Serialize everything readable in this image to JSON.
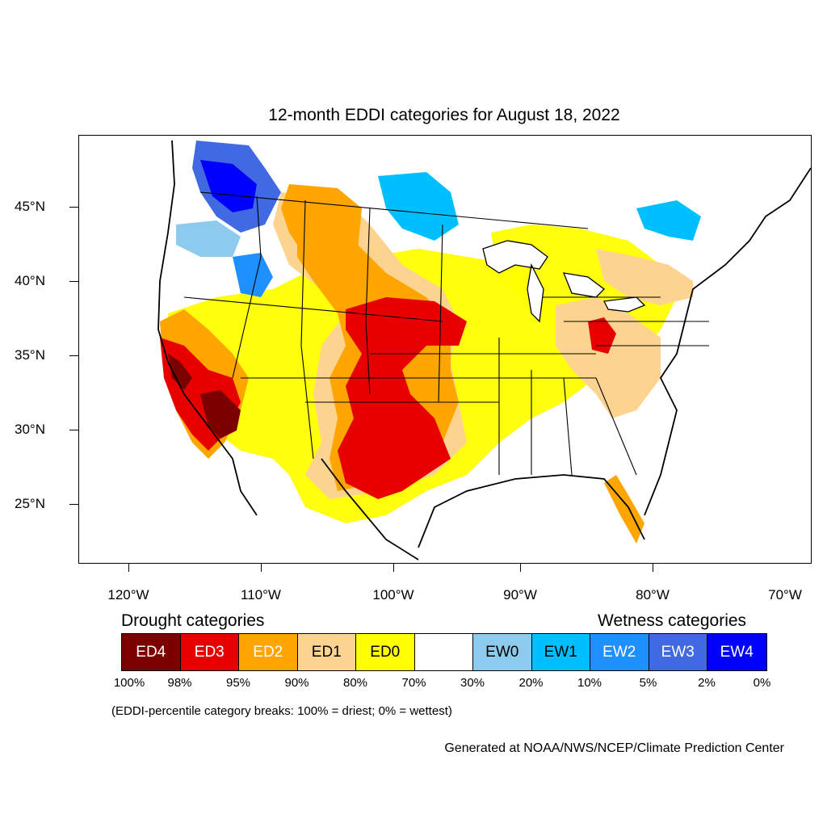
{
  "title": "12-month EDDI categories for August 18, 2022",
  "lat_labels": [
    "45°N",
    "40°N",
    "35°N",
    "30°N",
    "25°N"
  ],
  "lon_labels": [
    "120°W",
    "110°W",
    "100°W",
    "90°W",
    "80°W",
    "70°W"
  ],
  "legend": {
    "drought_heading": "Drought categories",
    "wetness_heading": "Wetness categories",
    "categories": [
      {
        "label": "ED4",
        "color": "#7b0000",
        "text_color": "#ffffff"
      },
      {
        "label": "ED3",
        "color": "#e60000",
        "text_color": "#ffffff"
      },
      {
        "label": "ED2",
        "color": "#ffa500",
        "text_color": "#ffffff"
      },
      {
        "label": "ED1",
        "color": "#fcd38f",
        "text_color": "#000000"
      },
      {
        "label": "ED0",
        "color": "#ffff00",
        "text_color": "#000000"
      },
      {
        "label": "",
        "color": "#ffffff",
        "text_color": "#000000"
      },
      {
        "label": "EW0",
        "color": "#8ccbee",
        "text_color": "#000000"
      },
      {
        "label": "EW1",
        "color": "#00bfff",
        "text_color": "#000000"
      },
      {
        "label": "EW2",
        "color": "#1e90ff",
        "text_color": "#ffffff"
      },
      {
        "label": "EW3",
        "color": "#4169e1",
        "text_color": "#ffffff"
      },
      {
        "label": "EW4",
        "color": "#0000ff",
        "text_color": "#ffffff"
      }
    ],
    "breaks": [
      "100%",
      "98%",
      "95%",
      "90%",
      "80%",
      "70%",
      "30%",
      "20%",
      "10%",
      "5%",
      "2%",
      "0%"
    ]
  },
  "note": "(EDDI-percentile category breaks: 100% = driest; 0% = wettest)",
  "credit": "Generated at NOAA/NWS/NCEP/Climate Prediction Center"
}
